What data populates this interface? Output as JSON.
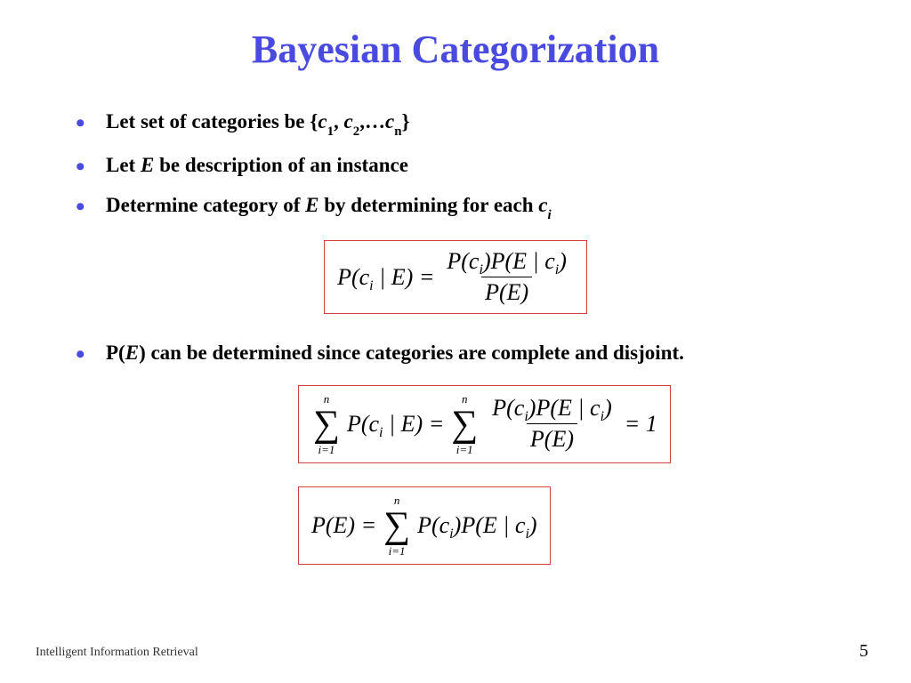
{
  "colors": {
    "title": "#4a4ae0",
    "bullet": "#4a4ae0",
    "formula_border": "#d04040",
    "text": "#000000"
  },
  "title": "Bayesian Categorization",
  "bullets": {
    "b1_pre": "Let set of categories be {",
    "b1_c1": "c",
    "b1_s1": "1",
    "b1_sep1": ", ",
    "b1_c2": "c",
    "b1_s2": "2",
    "b1_sep2": ",…",
    "b1_cn": "c",
    "b1_sn": "n",
    "b1_post": "}",
    "b2_pre": "Let ",
    "b2_E": "E",
    "b2_post": " be description of an instance",
    "b3_pre": "Determine category of ",
    "b3_E": "E",
    "b3_mid": " by determining for each ",
    "b3_c": "c",
    "b3_i": "i",
    "b4_pre": "P(",
    "b4_E": "E",
    "b4_post": ") can be determined since categories are complete and disjoint."
  },
  "formula1": {
    "lhs": "P(c",
    "lhs_sub": "i",
    "lhs2": " | E) =",
    "num_a": "P(c",
    "num_a_sub": "i",
    "num_b": ")P(E | c",
    "num_b_sub": "i",
    "num_c": ")",
    "den": "P(E)"
  },
  "formula2": {
    "top": "n",
    "bot": "i=1",
    "lhs_a": "P(c",
    "lhs_sub": "i",
    "lhs_b": " | E) =",
    "num_a": "P(c",
    "num_a_sub": "i",
    "num_b": ")P(E | c",
    "num_b_sub": "i",
    "num_c": ")",
    "den": "P(E)",
    "rhs": "= 1"
  },
  "formula3": {
    "lhs": "P(E) =",
    "top": "n",
    "bot": "i=1",
    "r_a": "P(c",
    "r_a_sub": "i",
    "r_b": ")P(E | c",
    "r_b_sub": "i",
    "r_c": ")"
  },
  "footer": {
    "left": "Intelligent Information Retrieval",
    "page": "5"
  }
}
